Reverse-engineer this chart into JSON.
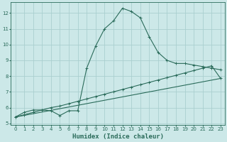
{
  "title": "",
  "xlabel": "Humidex (Indice chaleur)",
  "ylabel": "",
  "background_color": "#cce8e8",
  "grid_color": "#aacfcf",
  "line_color": "#2a6b5a",
  "xlim": [
    -0.5,
    23.5
  ],
  "ylim": [
    4.9,
    12.7
  ],
  "yticks": [
    5,
    6,
    7,
    8,
    9,
    10,
    11,
    12
  ],
  "xticks": [
    0,
    1,
    2,
    3,
    4,
    5,
    6,
    7,
    8,
    9,
    10,
    11,
    12,
    13,
    14,
    15,
    16,
    17,
    18,
    19,
    20,
    21,
    22,
    23
  ],
  "series1_x": [
    0,
    1,
    2,
    3,
    4,
    5,
    6,
    7,
    8,
    9,
    10,
    11,
    12,
    13,
    14,
    15,
    16,
    17,
    18,
    19,
    20,
    21,
    22,
    23
  ],
  "series1_y": [
    5.4,
    5.7,
    5.85,
    5.85,
    5.8,
    5.5,
    5.8,
    5.8,
    8.5,
    9.9,
    11.0,
    11.5,
    12.3,
    12.1,
    11.7,
    10.5,
    9.5,
    9.0,
    8.8,
    8.8,
    8.7,
    8.6,
    8.5,
    8.4
  ],
  "series2_x": [
    0,
    1,
    2,
    3,
    4,
    5,
    6,
    7,
    8,
    9,
    10,
    11,
    12,
    13,
    14,
    15,
    16,
    17,
    18,
    19,
    20,
    21,
    22,
    23
  ],
  "series2_y": [
    5.4,
    5.55,
    5.7,
    5.85,
    6.0,
    6.1,
    6.25,
    6.4,
    6.55,
    6.7,
    6.85,
    7.0,
    7.15,
    7.3,
    7.45,
    7.6,
    7.75,
    7.9,
    8.05,
    8.2,
    8.35,
    8.5,
    8.65,
    7.85
  ],
  "series3_x": [
    0,
    23
  ],
  "series3_y": [
    5.4,
    7.85
  ]
}
